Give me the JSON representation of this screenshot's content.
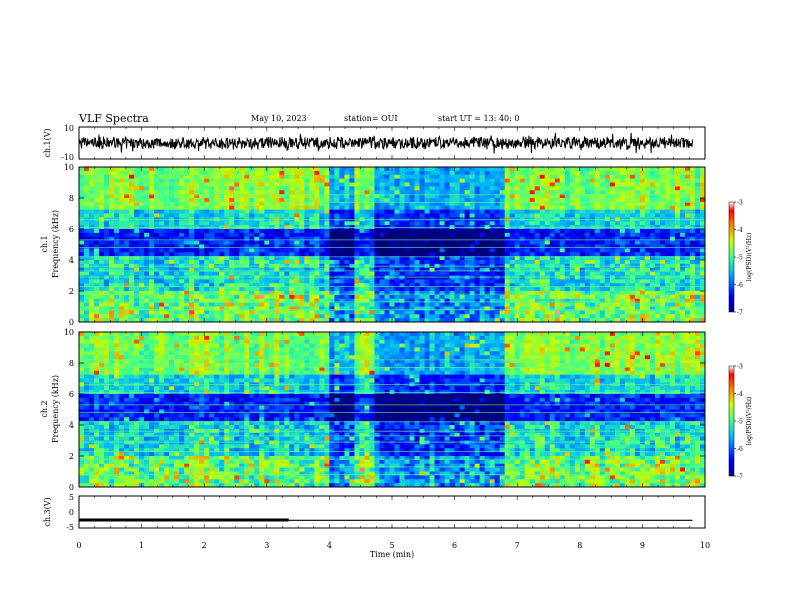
{
  "header": {
    "title": "VLF Spectra",
    "date": "May 10, 2023",
    "station": "station= OUI",
    "start": "start  UT  =   13: 40: 0"
  },
  "chart_data": [
    {
      "type": "line",
      "panel": "ch1-waveform",
      "ylabel": "ch.1(V)",
      "ylim": [
        -10,
        10
      ],
      "yticks": [
        "10",
        "-10"
      ],
      "xlim": [
        0,
        10
      ],
      "x": [
        0,
        1,
        2,
        3,
        4,
        5,
        6,
        7,
        8,
        9,
        9.8
      ],
      "y_envelope_amplitude": [
        3,
        3,
        4,
        3,
        3,
        4,
        3,
        3,
        3,
        3,
        3
      ]
    },
    {
      "type": "heatmap",
      "panel": "ch1-spectrogram",
      "ylabel": "ch.1\nFrequency (kHz)",
      "ylim": [
        0,
        10
      ],
      "yticks": [
        "0",
        "2",
        "4",
        "6",
        "8",
        "10"
      ],
      "xlim": [
        0,
        10
      ],
      "colorbar": {
        "label": "log(PSD)(V²/Hz)",
        "range": [
          -7,
          -3
        ],
        "ticks": [
          "-3",
          "-4",
          "-5",
          "-6",
          "-7"
        ]
      },
      "quiet_segments_min": [
        [
          4.0,
          4.4
        ],
        [
          4.75,
          6.8
        ]
      ],
      "band_lines_khz": [
        0.8,
        1.3,
        1.8,
        2.3,
        2.9,
        3.3,
        3.6,
        4.2,
        4.8,
        5.3,
        6.1,
        6.6,
        7.7,
        8.2
      ]
    },
    {
      "type": "heatmap",
      "panel": "ch2-spectrogram",
      "ylabel": "ch.2\nFrequency (kHz)",
      "ylim": [
        0,
        10
      ],
      "yticks": [
        "0",
        "2",
        "4",
        "6",
        "8",
        "10"
      ],
      "xlim": [
        0,
        10
      ],
      "colorbar": {
        "label": "log(PSD)(V²/Hz)",
        "range": [
          -7,
          -3
        ],
        "ticks": [
          "-3",
          "-4",
          "-5",
          "-6",
          "-7"
        ]
      },
      "quiet_segments_min": [
        [
          4.0,
          4.4
        ],
        [
          4.75,
          6.8
        ]
      ],
      "band_lines_khz": [
        0.8,
        1.3,
        1.8,
        2.3,
        2.9,
        3.3,
        3.6,
        4.2,
        4.8,
        5.3,
        6.1,
        6.6,
        7.7,
        8.2
      ]
    },
    {
      "type": "line",
      "panel": "ch3-waveform",
      "ylabel": "ch.3(V)",
      "ylim": [
        -5,
        5
      ],
      "yticks": [
        "5",
        "0",
        "-5"
      ],
      "xlim": [
        0,
        10
      ],
      "xlabel": "Time (min)",
      "xticks": [
        "0",
        "1",
        "2",
        "3",
        "4",
        "5",
        "6",
        "7",
        "8",
        "9",
        "10"
      ],
      "series": [
        {
          "x": [
            0,
            3.35
          ],
          "y": [
            -2.5,
            -2.5
          ]
        },
        {
          "x": [
            3.35,
            9.8
          ],
          "y": [
            -2.6,
            -2.6
          ]
        }
      ]
    }
  ]
}
